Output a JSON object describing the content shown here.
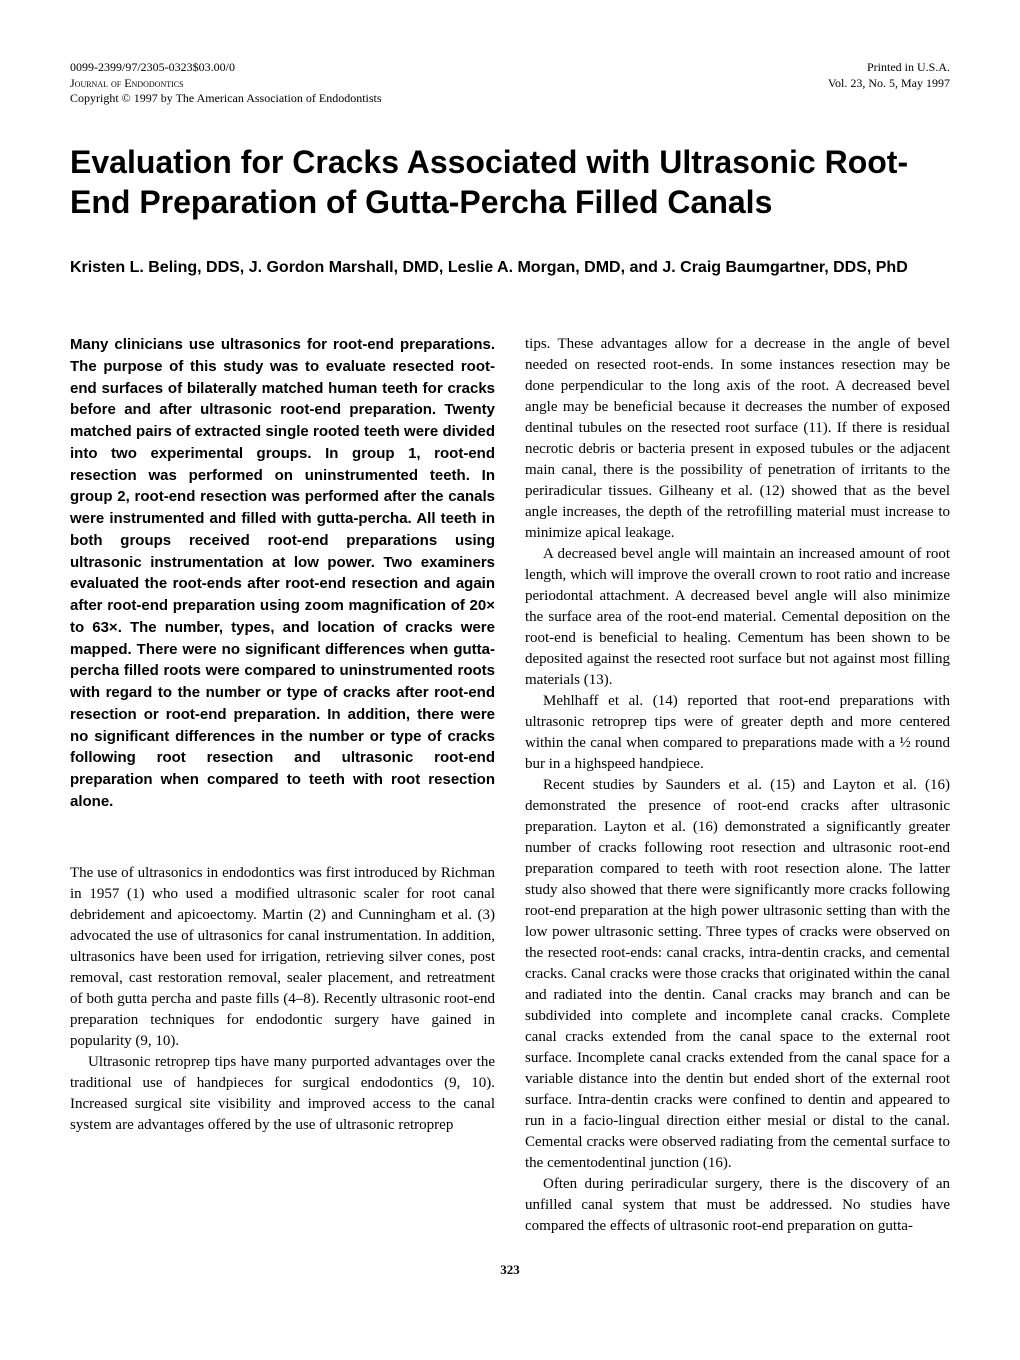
{
  "header": {
    "issn": "0099-2399/97/2305-0323$03.00/0",
    "journal": "Journal of Endodontics",
    "copyright": "Copyright © 1997 by The American Association of Endodontists",
    "printed": "Printed in U.S.A.",
    "volume": "Vol. 23, No. 5, May 1997"
  },
  "title": "Evaluation for Cracks Associated with Ultrasonic Root-End Preparation of Gutta-Percha Filled Canals",
  "authors": "Kristen L. Beling, DDS, J. Gordon Marshall, DMD, Leslie A. Morgan, DMD, and J. Craig Baumgartner, DDS, PhD",
  "abstract": "Many clinicians use ultrasonics for root-end preparations. The purpose of this study was to evaluate resected root-end surfaces of bilaterally matched human teeth for cracks before and after ultrasonic root-end preparation. Twenty matched pairs of extracted single rooted teeth were divided into two experimental groups. In group 1, root-end resection was performed on uninstrumented teeth. In group 2, root-end resection was performed after the canals were instrumented and filled with gutta-percha. All teeth in both groups received root-end preparations using ultrasonic instrumentation at low power. Two examiners evaluated the root-ends after root-end resection and again after root-end preparation using zoom magnification of 20× to 63×. The number, types, and location of cracks were mapped. There were no significant differences when gutta-percha filled roots were compared to uninstrumented roots with regard to the number or type of cracks after root-end resection or root-end preparation. In addition, there were no significant differences in the number or type of cracks following root resection and ultrasonic root-end preparation when compared to teeth with root resection alone.",
  "col1": {
    "p1": "The use of ultrasonics in endodontics was first introduced by Richman in 1957 (1) who used a modified ultrasonic scaler for root canal debridement and apicoectomy. Martin (2) and Cunningham et al. (3) advocated the use of ultrasonics for canal instrumentation. In addition, ultrasonics have been used for irrigation, retrieving silver cones, post removal, cast restoration removal, sealer placement, and retreatment of both gutta percha and paste fills (4–8). Recently ultrasonic root-end preparation techniques for endodontic surgery have gained in popularity (9, 10).",
    "p2": "Ultrasonic retroprep tips have many purported advantages over the traditional use of handpieces for surgical endodontics (9, 10). Increased surgical site visibility and improved access to the canal system are advantages offered by the use of ultrasonic retroprep"
  },
  "col2": {
    "p1": "tips. These advantages allow for a decrease in the angle of bevel needed on resected root-ends. In some instances resection may be done perpendicular to the long axis of the root. A decreased bevel angle may be beneficial because it decreases the number of exposed dentinal tubules on the resected root surface (11). If there is residual necrotic debris or bacteria present in exposed tubules or the adjacent main canal, there is the possibility of penetration of irritants to the periradicular tissues. Gilheany et al. (12) showed that as the bevel angle increases, the depth of the retrofilling material must increase to minimize apical leakage.",
    "p2": "A decreased bevel angle will maintain an increased amount of root length, which will improve the overall crown to root ratio and increase periodontal attachment. A decreased bevel angle will also minimize the surface area of the root-end material. Cemental deposition on the root-end is beneficial to healing. Cementum has been shown to be deposited against the resected root surface but not against most filling materials (13).",
    "p3": "Mehlhaff et al. (14) reported that root-end preparations with ultrasonic retroprep tips were of greater depth and more centered within the canal when compared to preparations made with a ½ round bur in a highspeed handpiece.",
    "p4": "Recent studies by Saunders et al. (15) and Layton et al. (16) demonstrated the presence of root-end cracks after ultrasonic preparation. Layton et al. (16) demonstrated a significantly greater number of cracks following root resection and ultrasonic root-end preparation compared to teeth with root resection alone. The latter study also showed that there were significantly more cracks following root-end preparation at the high power ultrasonic setting than with the low power ultrasonic setting. Three types of cracks were observed on the resected root-ends: canal cracks, intra-dentin cracks, and cemental cracks. Canal cracks were those cracks that originated within the canal and radiated into the dentin. Canal cracks may branch and can be subdivided into complete and incomplete canal cracks. Complete canal cracks extended from the canal space to the external root surface. Incomplete canal cracks extended from the canal space for a variable distance into the dentin but ended short of the external root surface. Intra-dentin cracks were confined to dentin and appeared to run in a facio-lingual direction either mesial or distal to the canal. Cemental cracks were observed radiating from the cemental surface to the cementodentinal junction (16).",
    "p5": "Often during periradicular surgery, there is the discovery of an unfilled canal system that must be addressed. No studies have compared the effects of ultrasonic root-end preparation on gutta-"
  },
  "pageNumber": "323"
}
